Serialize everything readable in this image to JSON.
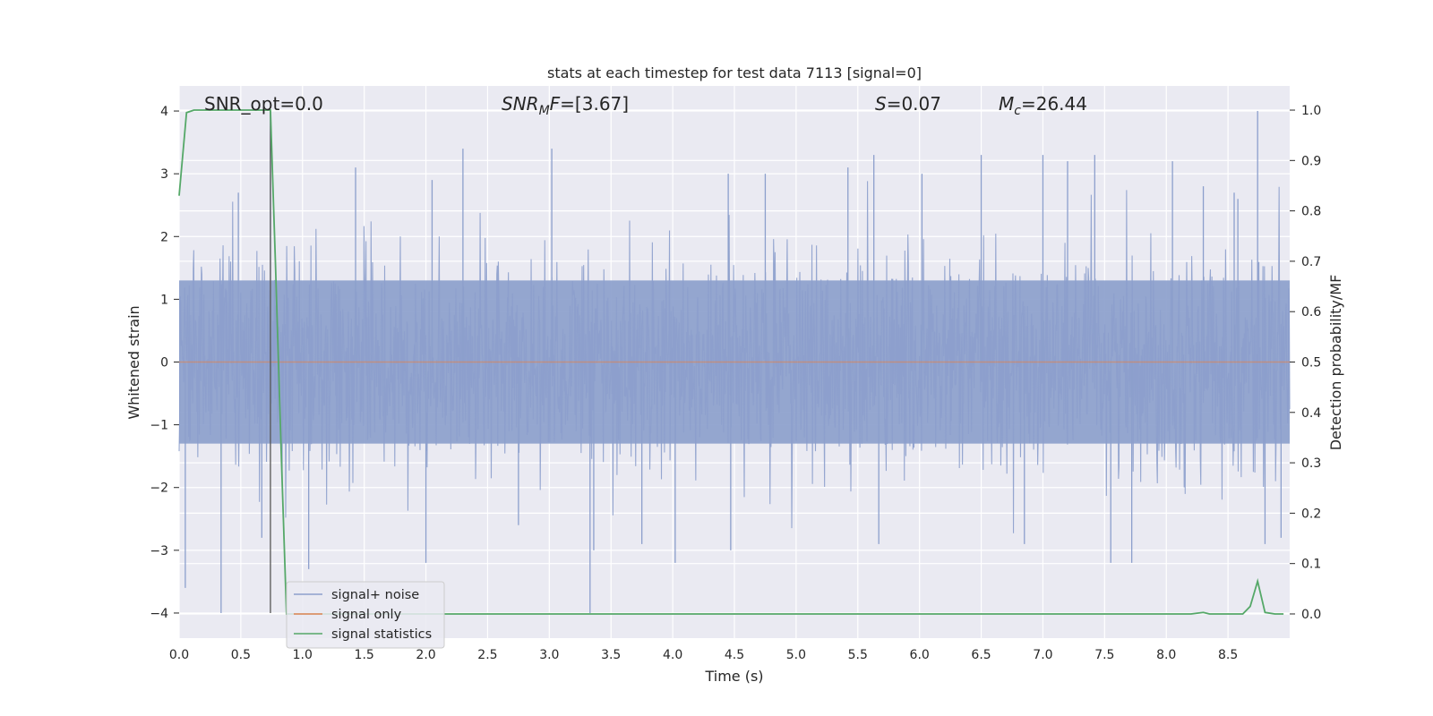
{
  "chart_data": {
    "type": "line",
    "title": "stats at each timestep for test data 7113 [signal=0]",
    "xlabel": "Time (s)",
    "ylabel": "Whitened strain",
    "ylabel_right": "Detection probability/MF",
    "xlim": [
      0,
      9.0
    ],
    "ylim": [
      -4.4,
      4.4
    ],
    "ylim_right": [
      -0.048,
      1.048
    ],
    "xticks": [
      0.0,
      0.5,
      1.0,
      1.5,
      2.0,
      2.5,
      3.0,
      3.5,
      4.0,
      4.5,
      5.0,
      5.5,
      6.0,
      6.5,
      7.0,
      7.5,
      8.0,
      8.5
    ],
    "xtick_labels": [
      "0.0",
      "0.5",
      "1.0",
      "1.5",
      "2.0",
      "2.5",
      "3.0",
      "3.5",
      "4.0",
      "4.5",
      "5.0",
      "5.5",
      "6.0",
      "6.5",
      "7.0",
      "7.5",
      "8.0",
      "8.5"
    ],
    "yticks": [
      -4,
      -3,
      -2,
      -1,
      0,
      1,
      2,
      3,
      4
    ],
    "ytick_labels": [
      "−4",
      "−3",
      "−2",
      "−1",
      "0",
      "1",
      "2",
      "3",
      "4"
    ],
    "yticks_right": [
      0.0,
      0.1,
      0.2,
      0.3,
      0.4,
      0.5,
      0.6,
      0.7,
      0.8,
      0.9,
      1.0
    ],
    "ytick_labels_right": [
      "0.0",
      "0.1",
      "0.2",
      "0.3",
      "0.4",
      "0.5",
      "0.6",
      "0.7",
      "0.8",
      "0.9",
      "1.0"
    ],
    "grid": true,
    "legend_placement": "lower-left",
    "annotations": {
      "snr_opt": "SNR_opt=0.0",
      "snr_mf_base": "SNR",
      "snr_mf_sub": "M",
      "snr_mf_rest": "F=[3.67]",
      "s_sym": "S",
      "s_rest": "=0.07",
      "mc_base": "M",
      "mc_sub": "c",
      "mc_rest": "=26.44"
    },
    "vertical_marker": {
      "x": 0.74,
      "y_range": [
        -4,
        4
      ]
    },
    "series": [
      {
        "name": "signal+ noise",
        "color": "#8c9fcc",
        "axis": "left",
        "noise": {
          "std": 0.82,
          "fill_band": [
            -1.3,
            1.3
          ],
          "seed": 7113,
          "samples": 2200
        },
        "peaks_y": [
          [
            0.05,
            -3.6
          ],
          [
            0.34,
            -4.0
          ],
          [
            0.48,
            2.7
          ],
          [
            0.67,
            -2.8
          ],
          [
            0.74,
            4.0
          ],
          [
            1.05,
            -3.3
          ],
          [
            1.43,
            3.1
          ],
          [
            2.0,
            -3.2
          ],
          [
            2.05,
            2.9
          ],
          [
            2.3,
            3.4
          ],
          [
            2.75,
            -2.6
          ],
          [
            3.02,
            3.4
          ],
          [
            3.33,
            -4.0
          ],
          [
            3.36,
            -3.0
          ],
          [
            3.75,
            -2.9
          ],
          [
            4.02,
            -3.2
          ],
          [
            4.45,
            3.0
          ],
          [
            4.47,
            -3.0
          ],
          [
            4.75,
            3.0
          ],
          [
            5.42,
            3.1
          ],
          [
            5.63,
            3.3
          ],
          [
            5.67,
            -2.9
          ],
          [
            6.02,
            3.0
          ],
          [
            6.5,
            3.3
          ],
          [
            6.85,
            -2.9
          ],
          [
            7.0,
            3.3
          ],
          [
            7.2,
            3.2
          ],
          [
            7.42,
            3.3
          ],
          [
            7.55,
            -3.2
          ],
          [
            7.72,
            -3.2
          ],
          [
            8.05,
            3.2
          ],
          [
            8.3,
            2.8
          ],
          [
            8.55,
            2.7
          ],
          [
            8.58,
            2.6
          ],
          [
            8.74,
            4.0
          ],
          [
            8.8,
            -2.9
          ],
          [
            8.93,
            -2.8
          ]
        ]
      },
      {
        "name": "signal only",
        "color": "#dd8452",
        "axis": "left",
        "x": [
          0.0,
          9.0
        ],
        "y": [
          0.0,
          0.0
        ]
      },
      {
        "name": "signal statistics",
        "color": "#55a868",
        "axis": "right",
        "x": [
          0.0,
          0.06,
          0.12,
          0.2,
          0.3,
          0.4,
          0.5,
          0.6,
          0.7,
          0.74,
          0.78,
          0.83,
          0.87,
          0.92,
          1.0,
          1.5,
          2.0,
          3.0,
          4.0,
          5.0,
          5.9,
          6.2,
          7.0,
          8.0,
          8.2,
          8.3,
          8.35,
          8.45,
          8.55,
          8.62,
          8.68,
          8.74,
          8.8,
          8.88,
          8.95
        ],
        "y": [
          0.83,
          0.995,
          1.0,
          1.0,
          1.0,
          1.0,
          1.0,
          1.0,
          1.0,
          1.0,
          0.7,
          0.3,
          0.0,
          0.0,
          0.0,
          0.0,
          0.0,
          0.0,
          0.0,
          0.0,
          0.0,
          0.0,
          0.0,
          0.0,
          0.0,
          0.003,
          0.0,
          0.0,
          0.0,
          0.0,
          0.015,
          0.065,
          0.003,
          0.0,
          0.0
        ]
      }
    ]
  }
}
